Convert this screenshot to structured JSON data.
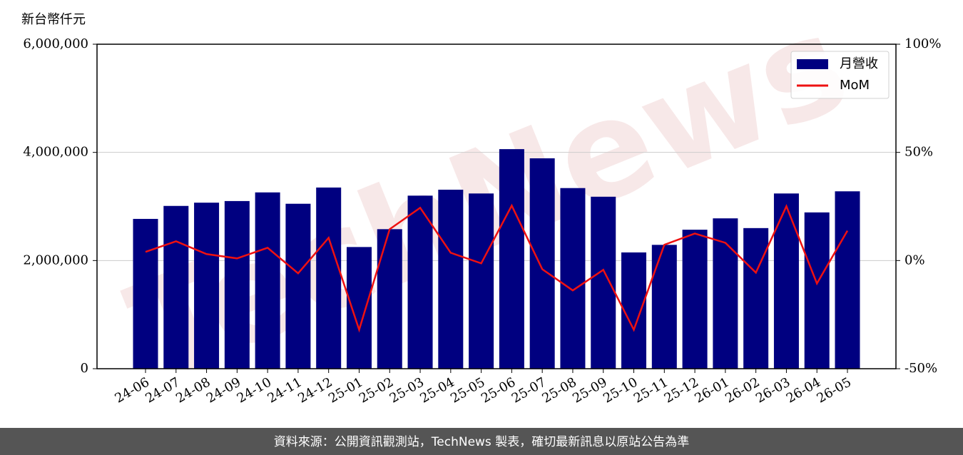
{
  "chart_data": {
    "type": "bar",
    "y_label": "新台幣仟元",
    "watermark": "TechNews",
    "source": "資料來源：公開資訊觀測站，TechNews 製表，確切最新訊息以原站公告為準",
    "categories": [
      "24-06",
      "24-07",
      "24-08",
      "24-09",
      "24-10",
      "24-11",
      "24-12",
      "25-01",
      "25-02",
      "25-03",
      "25-04",
      "25-05",
      "25-06",
      "25-07",
      "25-08",
      "25-09",
      "25-10",
      "25-11",
      "25-12",
      "26-01",
      "26-02",
      "26-03",
      "26-04",
      "26-05"
    ],
    "series": [
      {
        "name": "月營收",
        "type": "bar",
        "axis": "y",
        "color": "#000080",
        "values": [
          2770000,
          3010000,
          3070000,
          3100000,
          3260000,
          3050000,
          3350000,
          2250000,
          2580000,
          3200000,
          3310000,
          3240000,
          4060000,
          3890000,
          3340000,
          3180000,
          2150000,
          2290000,
          2570000,
          2780000,
          2600000,
          3240000,
          2890000,
          3280000
        ]
      },
      {
        "name": "MoM",
        "type": "line",
        "axis": "y2",
        "color": "#ee1111",
        "values": [
          4.0,
          8.9,
          3.0,
          1.0,
          5.9,
          -5.9,
          10.5,
          -32.0,
          14.5,
          24.4,
          3.6,
          -1.3,
          25.4,
          -4.0,
          -13.8,
          -4.3,
          -32.0,
          7.3,
          12.5,
          8.2,
          -5.6,
          25.1,
          -10.6,
          13.8
        ]
      }
    ],
    "ylim": [
      0,
      6000000
    ],
    "yticks": [
      0,
      {
        "value": 2000000,
        "label": "2,000,000"
      },
      {
        "value": 4000000,
        "label": "4,000,000"
      },
      {
        "value": 6000000,
        "label": "6,000,000"
      }
    ],
    "y2lim": [
      -50,
      100
    ],
    "y2ticks": [
      {
        "value": -50,
        "label": "-50%"
      },
      {
        "value": 0,
        "label": "0%"
      },
      {
        "value": 50,
        "label": "50%"
      },
      {
        "value": 100,
        "label": "100%"
      }
    ],
    "grid": true,
    "legend": "upper-right"
  }
}
